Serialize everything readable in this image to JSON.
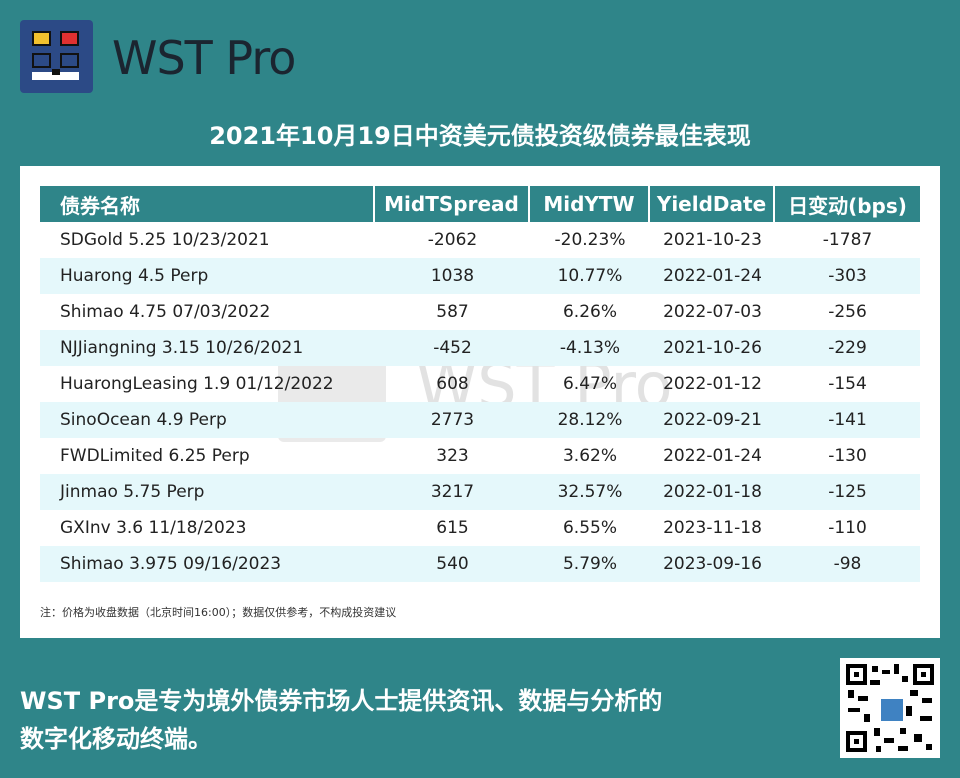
{
  "brand": {
    "name": "WST Pro"
  },
  "title": "2021年10月19日中资美元债投资级债券最佳表现",
  "table": {
    "headers": [
      "债券名称",
      "MidTSpread",
      "MidYTW",
      "YieldDate",
      "日变动(bps)"
    ],
    "rows": [
      [
        "SDGold 5.25 10/23/2021",
        "-2062",
        "-20.23%",
        "2021-10-23",
        "-1787"
      ],
      [
        "Huarong 4.5 Perp",
        "1038",
        "10.77%",
        "2022-01-24",
        "-303"
      ],
      [
        "Shimao 4.75 07/03/2022",
        "587",
        "6.26%",
        "2022-07-03",
        "-256"
      ],
      [
        "NJJiangning 3.15 10/26/2021",
        "-452",
        "-4.13%",
        "2021-10-26",
        "-229"
      ],
      [
        "HuarongLeasing 1.9 01/12/2022",
        "608",
        "6.47%",
        "2022-01-12",
        "-154"
      ],
      [
        "SinoOcean 4.9 Perp",
        "2773",
        "28.12%",
        "2022-09-21",
        "-141"
      ],
      [
        "FWDLimited 6.25 Perp",
        "323",
        "3.62%",
        "2022-01-24",
        "-130"
      ],
      [
        "Jinmao 5.75 Perp",
        "3217",
        "32.57%",
        "2022-01-18",
        "-125"
      ],
      [
        "GXInv 3.6 11/18/2023",
        "615",
        "6.55%",
        "2023-11-18",
        "-110"
      ],
      [
        "Shimao 3.975 09/16/2023",
        "540",
        "5.79%",
        "2023-09-16",
        "-98"
      ]
    ]
  },
  "note": "注：价格为收盘数据（北京时间16:00）；数据仅供参考，不构成投资建议",
  "watermark": "WST Pro",
  "slogan": {
    "line1": "WST Pro是专为境外债券市场人士提供资讯、数据与分析的",
    "line2": "数字化移动终端。"
  },
  "colors": {
    "background": "#2f8589",
    "logo_bg": "#2c4a86",
    "header_bg": "#2f8589",
    "row_alt": "#e5f8fb"
  },
  "icons": {
    "logo": "wst-logo-icon",
    "qr": "qr-code-icon"
  }
}
